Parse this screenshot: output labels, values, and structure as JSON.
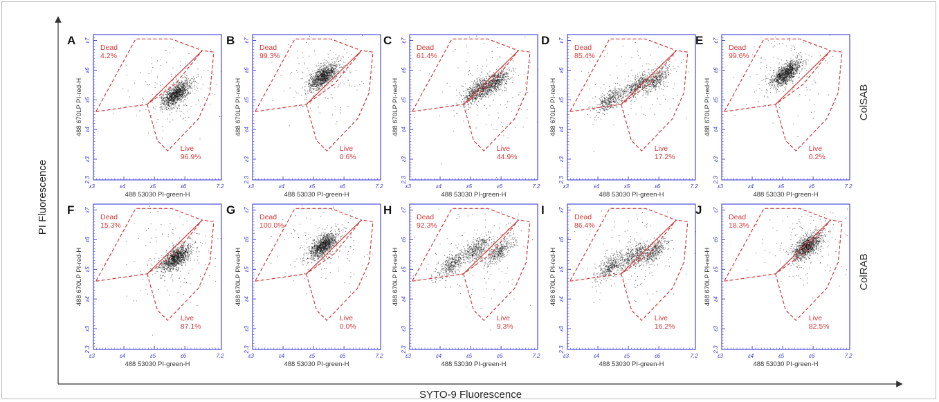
{
  "figure": {
    "y_axis_title": "PI Fluorescence",
    "x_axis_title": "SYTO-9 Fluorescence",
    "row_labels": [
      "ColSAB",
      "ColRAB"
    ],
    "plot_xlabel": "488 53030 PI-green-H",
    "plot_ylabel": "488 670LP PI-red-H",
    "x_tick_labels": [
      "3",
      "4",
      "5",
      "6",
      "7.2"
    ],
    "y_tick_labels": [
      "2.3",
      "3",
      "4",
      "5",
      "6",
      "7"
    ],
    "gate_dead_label": "Dead",
    "gate_live_label": "Live",
    "colors": {
      "plot_border": "#4a4adf",
      "gate": "#d13a3a",
      "dots": "#111111",
      "tick": "#3a3ad6"
    }
  },
  "chart_data": [
    {
      "type": "scatter",
      "panel": "A",
      "row": "ColSAB",
      "dead_pct": "4.2%",
      "live_pct": "96.9%",
      "cluster_centers": [
        {
          "x": 5.7,
          "y": 5.2
        }
      ]
    },
    {
      "type": "scatter",
      "panel": "B",
      "row": "ColSAB",
      "dead_pct": "99.3%",
      "live_pct": "0.6%",
      "cluster_centers": [
        {
          "x": 5.3,
          "y": 5.8
        }
      ]
    },
    {
      "type": "scatter",
      "panel": "C",
      "row": "ColSAB",
      "dead_pct": "61.4%",
      "live_pct": "44.9%",
      "cluster_centers": [
        {
          "x": 5.8,
          "y": 5.6
        },
        {
          "x": 5.2,
          "y": 5.3
        }
      ]
    },
    {
      "type": "scatter",
      "panel": "D",
      "row": "ColSAB",
      "dead_pct": "85.4%",
      "live_pct": "17.2%",
      "cluster_centers": [
        {
          "x": 4.4,
          "y": 5.0
        },
        {
          "x": 5.3,
          "y": 5.5
        },
        {
          "x": 5.9,
          "y": 5.7
        }
      ]
    },
    {
      "type": "scatter",
      "panel": "E",
      "row": "ColSAB",
      "dead_pct": "99.6%",
      "live_pct": "0.2%",
      "cluster_centers": [
        {
          "x": 5.1,
          "y": 5.9
        }
      ]
    },
    {
      "type": "scatter",
      "panel": "F",
      "row": "ColRAB",
      "dead_pct": "15.3%",
      "live_pct": "87.1%",
      "cluster_centers": [
        {
          "x": 5.7,
          "y": 5.4
        }
      ]
    },
    {
      "type": "scatter",
      "panel": "G",
      "row": "ColRAB",
      "dead_pct": "100.0%",
      "live_pct": "0.0%",
      "cluster_centers": [
        {
          "x": 5.3,
          "y": 5.8
        }
      ]
    },
    {
      "type": "scatter",
      "panel": "H",
      "row": "ColRAB",
      "dead_pct": "92.3%",
      "live_pct": "9.3%",
      "cluster_centers": [
        {
          "x": 4.4,
          "y": 5.2
        },
        {
          "x": 5.2,
          "y": 5.7
        },
        {
          "x": 5.9,
          "y": 5.6
        }
      ]
    },
    {
      "type": "scatter",
      "panel": "I",
      "row": "ColRAB",
      "dead_pct": "86.4%",
      "live_pct": "16.2%",
      "cluster_centers": [
        {
          "x": 4.4,
          "y": 5.1
        },
        {
          "x": 5.2,
          "y": 5.5
        },
        {
          "x": 5.8,
          "y": 5.6
        }
      ]
    },
    {
      "type": "scatter",
      "panel": "J",
      "row": "ColRAB",
      "dead_pct": "18.3%",
      "live_pct": "82.5%",
      "cluster_centers": [
        {
          "x": 5.8,
          "y": 5.8
        }
      ]
    }
  ]
}
